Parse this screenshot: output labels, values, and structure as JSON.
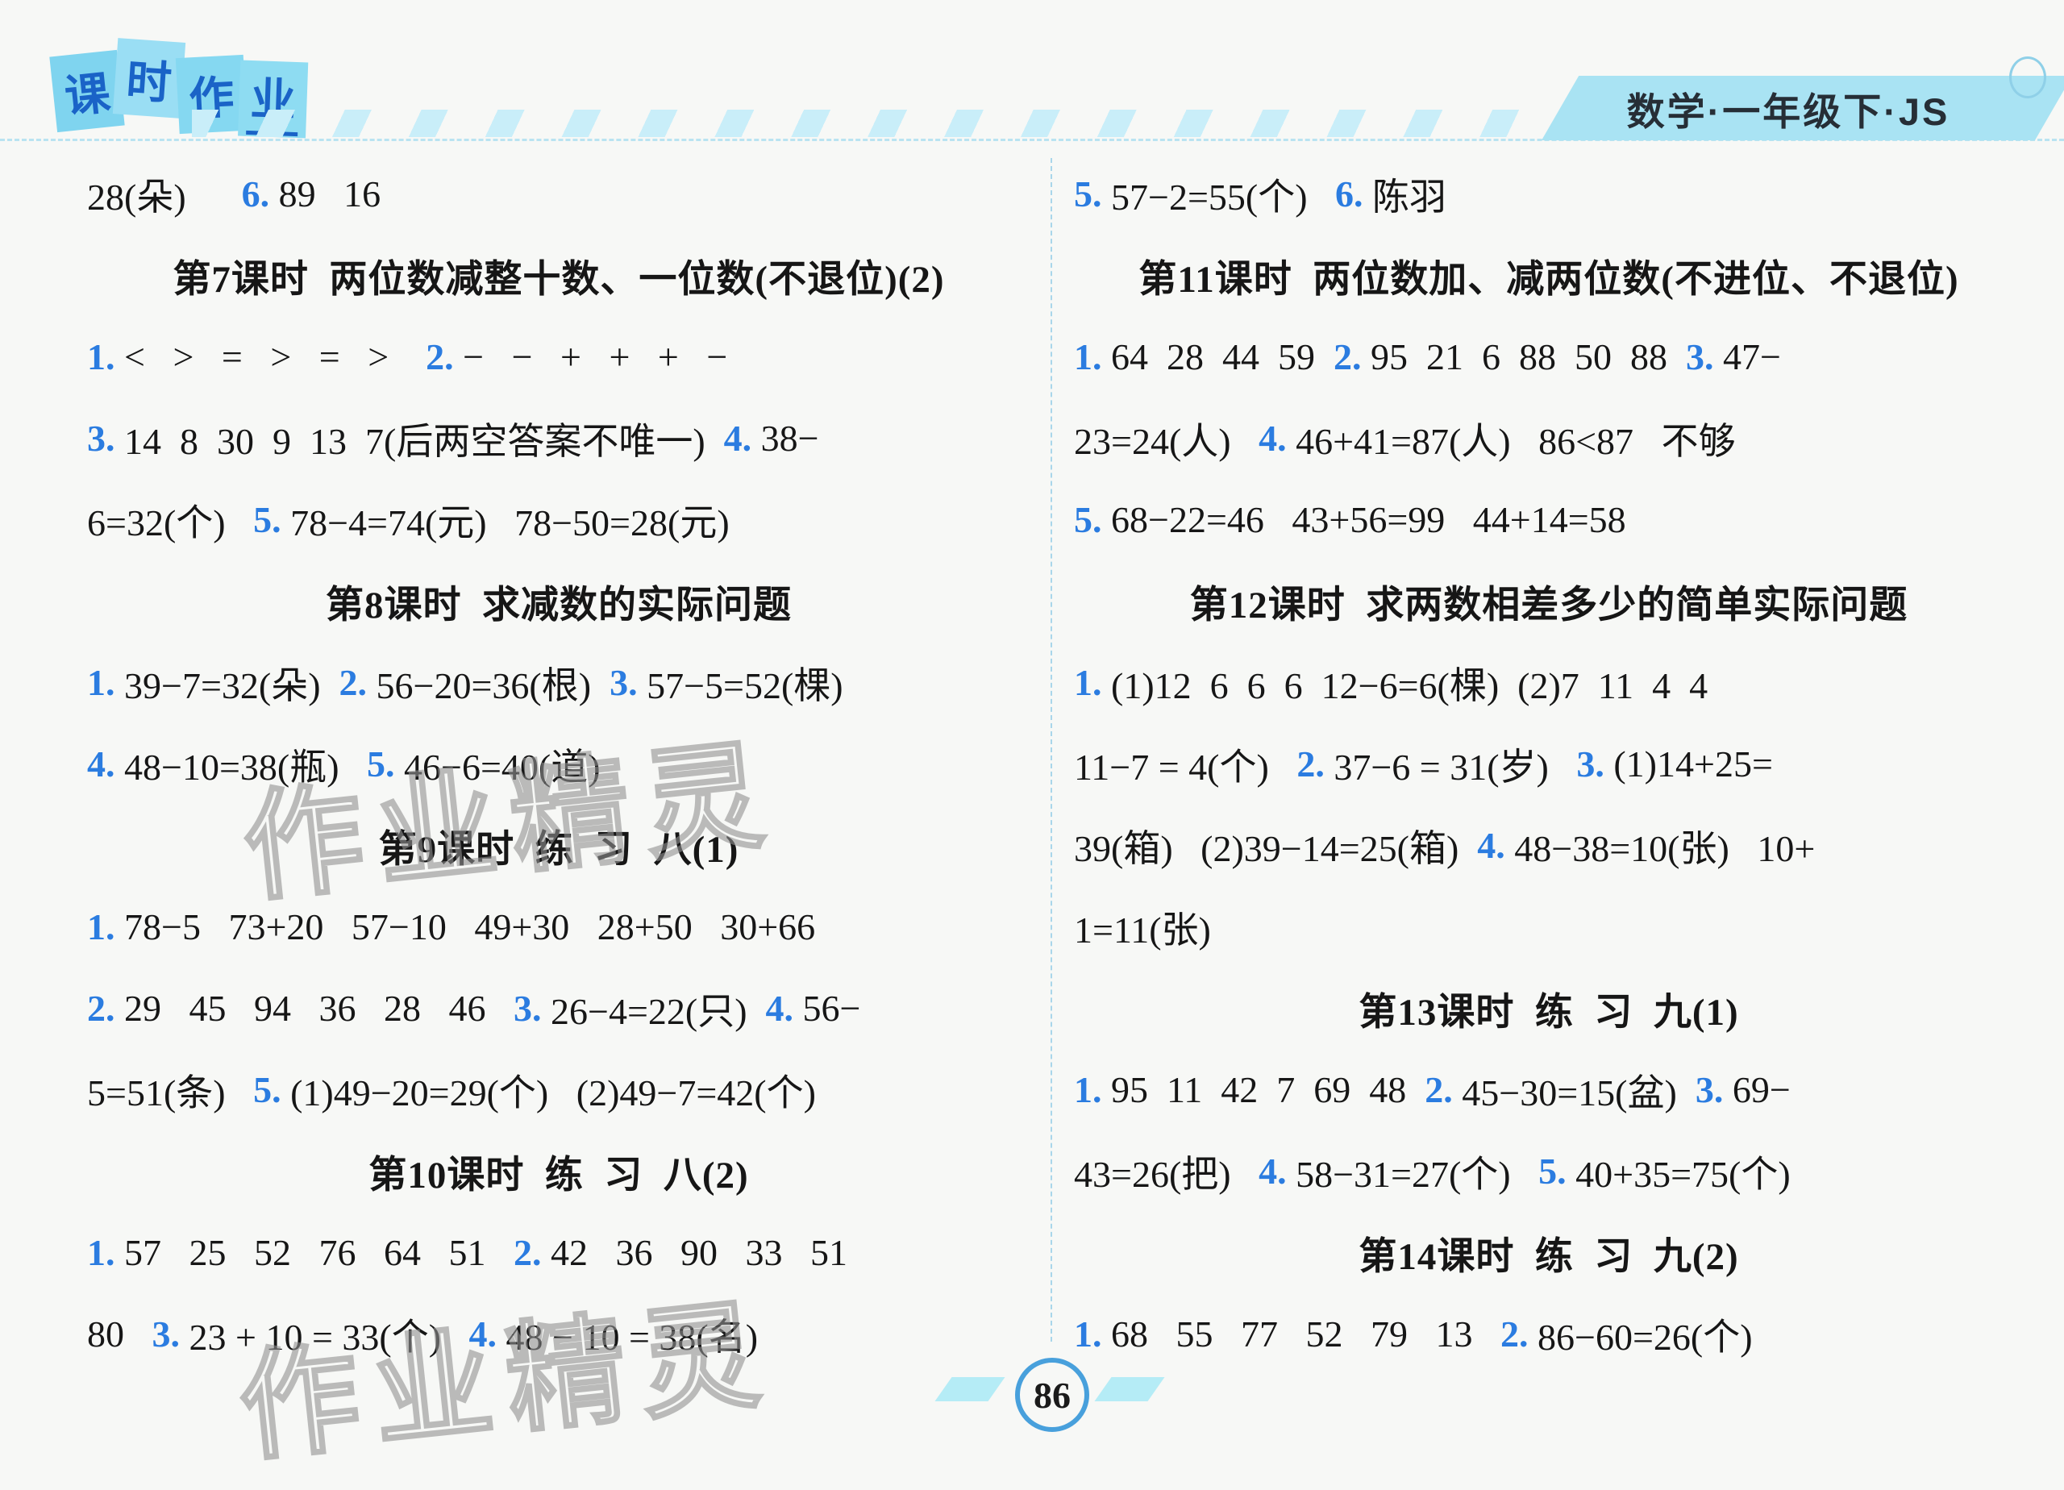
{
  "page": {
    "logo_chars": [
      "课",
      "时",
      "作",
      "业"
    ],
    "edition": "数学·一年级下·JS",
    "page_number": "86",
    "watermark_text": "作业精灵",
    "accent_blue": "#2b7ce0",
    "banner_fill": "#a9e3f3"
  },
  "left_column": {
    "rows": [
      {
        "type": "line",
        "parts": [
          {
            "style": "text",
            "value": "28(朵)      "
          },
          {
            "style": "num",
            "value": "6. "
          },
          {
            "style": "text",
            "value": "89   16"
          }
        ]
      },
      {
        "type": "heading",
        "text": "第7课时  两位数减整十数、一位数(不退位)(2)"
      },
      {
        "type": "line",
        "parts": [
          {
            "style": "num",
            "value": "1. "
          },
          {
            "style": "text",
            "value": "<   >   =   >   =   >    "
          },
          {
            "style": "num",
            "value": "2. "
          },
          {
            "style": "text",
            "value": "−   −   +   +   +   −"
          }
        ]
      },
      {
        "type": "line",
        "parts": [
          {
            "style": "num",
            "value": "3. "
          },
          {
            "style": "text",
            "value": "14  8  30  9  13  7(后两空答案不唯一)  "
          },
          {
            "style": "num",
            "value": "4. "
          },
          {
            "style": "text",
            "value": "38−"
          }
        ]
      },
      {
        "type": "line",
        "parts": [
          {
            "style": "text",
            "value": "6=32(个)   "
          },
          {
            "style": "num",
            "value": "5. "
          },
          {
            "style": "text",
            "value": "78−4=74(元)   78−50=28(元)"
          }
        ]
      },
      {
        "type": "heading",
        "text": "第8课时  求减数的实际问题"
      },
      {
        "type": "line",
        "parts": [
          {
            "style": "num",
            "value": "1. "
          },
          {
            "style": "text",
            "value": "39−7=32(朵)  "
          },
          {
            "style": "num",
            "value": "2. "
          },
          {
            "style": "text",
            "value": "56−20=36(根)  "
          },
          {
            "style": "num",
            "value": "3. "
          },
          {
            "style": "text",
            "value": "57−5=52(棵)"
          }
        ]
      },
      {
        "type": "line",
        "parts": [
          {
            "style": "num",
            "value": "4. "
          },
          {
            "style": "text",
            "value": "48−10=38(瓶)   "
          },
          {
            "style": "num",
            "value": "5. "
          },
          {
            "style": "text",
            "value": "46−6=40(道)"
          }
        ]
      },
      {
        "type": "heading",
        "text": "第9课时  练  习  八(1)"
      },
      {
        "type": "line",
        "parts": [
          {
            "style": "num",
            "value": "1. "
          },
          {
            "style": "text",
            "value": "78−5   73+20   57−10   49+30   28+50   30+66"
          }
        ]
      },
      {
        "type": "line",
        "parts": [
          {
            "style": "num",
            "value": "2. "
          },
          {
            "style": "text",
            "value": "29   45   94   36   28   46   "
          },
          {
            "style": "num",
            "value": "3. "
          },
          {
            "style": "text",
            "value": "26−4=22(只)  "
          },
          {
            "style": "num",
            "value": "4. "
          },
          {
            "style": "text",
            "value": "56−"
          }
        ]
      },
      {
        "type": "line",
        "parts": [
          {
            "style": "text",
            "value": "5=51(条)   "
          },
          {
            "style": "num",
            "value": "5. "
          },
          {
            "style": "text",
            "value": "(1)49−20=29(个)   (2)49−7=42(个)"
          }
        ]
      },
      {
        "type": "heading",
        "text": "第10课时  练  习  八(2)"
      },
      {
        "type": "line",
        "parts": [
          {
            "style": "num",
            "value": "1. "
          },
          {
            "style": "text",
            "value": "57   25   52   76   64   51   "
          },
          {
            "style": "num",
            "value": "2. "
          },
          {
            "style": "text",
            "value": "42   36   90   33   51"
          }
        ]
      },
      {
        "type": "line",
        "parts": [
          {
            "style": "text",
            "value": "80   "
          },
          {
            "style": "num",
            "value": "3. "
          },
          {
            "style": "text",
            "value": "23 + 10 = 33(个)   "
          },
          {
            "style": "num",
            "value": "4. "
          },
          {
            "style": "text",
            "value": "48 − 10 = 38(名)"
          }
        ]
      }
    ]
  },
  "right_column": {
    "rows": [
      {
        "type": "line",
        "parts": [
          {
            "style": "num",
            "value": "5. "
          },
          {
            "style": "text",
            "value": "57−2=55(个)   "
          },
          {
            "style": "num",
            "value": "6. "
          },
          {
            "style": "text",
            "value": "陈羽"
          }
        ]
      },
      {
        "type": "heading",
        "text": "第11课时  两位数加、减两位数(不进位、不退位)"
      },
      {
        "type": "line",
        "parts": [
          {
            "style": "num",
            "value": "1. "
          },
          {
            "style": "text",
            "value": "64  28  44  59  "
          },
          {
            "style": "num",
            "value": "2. "
          },
          {
            "style": "text",
            "value": "95  21  6  88  50  88  "
          },
          {
            "style": "num",
            "value": "3. "
          },
          {
            "style": "text",
            "value": "47−"
          }
        ]
      },
      {
        "type": "line",
        "parts": [
          {
            "style": "text",
            "value": "23=24(人)   "
          },
          {
            "style": "num",
            "value": "4. "
          },
          {
            "style": "text",
            "value": "46+41=87(人)   86<87   不够"
          }
        ]
      },
      {
        "type": "line",
        "parts": [
          {
            "style": "num",
            "value": "5. "
          },
          {
            "style": "text",
            "value": "68−22=46   43+56=99   44+14=58"
          }
        ]
      },
      {
        "type": "heading",
        "text": "第12课时  求两数相差多少的简单实际问题"
      },
      {
        "type": "line",
        "parts": [
          {
            "style": "num",
            "value": "1. "
          },
          {
            "style": "text",
            "value": "(1)12  6  6  6  12−6=6(棵)  (2)7  11  4  4"
          }
        ]
      },
      {
        "type": "line",
        "parts": [
          {
            "style": "text",
            "value": "11−7 = 4(个)   "
          },
          {
            "style": "num",
            "value": "2. "
          },
          {
            "style": "text",
            "value": "37−6 = 31(岁)   "
          },
          {
            "style": "num",
            "value": "3. "
          },
          {
            "style": "text",
            "value": "(1)14+25="
          }
        ]
      },
      {
        "type": "line",
        "parts": [
          {
            "style": "text",
            "value": "39(箱)   (2)39−14=25(箱)  "
          },
          {
            "style": "num",
            "value": "4. "
          },
          {
            "style": "text",
            "value": "48−38=10(张)   10+"
          }
        ]
      },
      {
        "type": "line",
        "parts": [
          {
            "style": "text",
            "value": "1=11(张)"
          }
        ]
      },
      {
        "type": "heading",
        "text": "第13课时  练  习  九(1)"
      },
      {
        "type": "line",
        "parts": [
          {
            "style": "num",
            "value": "1. "
          },
          {
            "style": "text",
            "value": "95  11  42  7  69  48  "
          },
          {
            "style": "num",
            "value": "2. "
          },
          {
            "style": "text",
            "value": "45−30=15(盆)  "
          },
          {
            "style": "num",
            "value": "3. "
          },
          {
            "style": "text",
            "value": "69−"
          }
        ]
      },
      {
        "type": "line",
        "parts": [
          {
            "style": "text",
            "value": "43=26(把)   "
          },
          {
            "style": "num",
            "value": "4. "
          },
          {
            "style": "text",
            "value": "58−31=27(个)   "
          },
          {
            "style": "num",
            "value": "5. "
          },
          {
            "style": "text",
            "value": "40+35=75(个)"
          }
        ]
      },
      {
        "type": "heading",
        "text": "第14课时  练  习  九(2)"
      },
      {
        "type": "line",
        "parts": [
          {
            "style": "num",
            "value": "1. "
          },
          {
            "style": "text",
            "value": "68   55   77   52   79   13   "
          },
          {
            "style": "num",
            "value": "2. "
          },
          {
            "style": "text",
            "value": "86−60=26(个)"
          }
        ]
      }
    ]
  }
}
